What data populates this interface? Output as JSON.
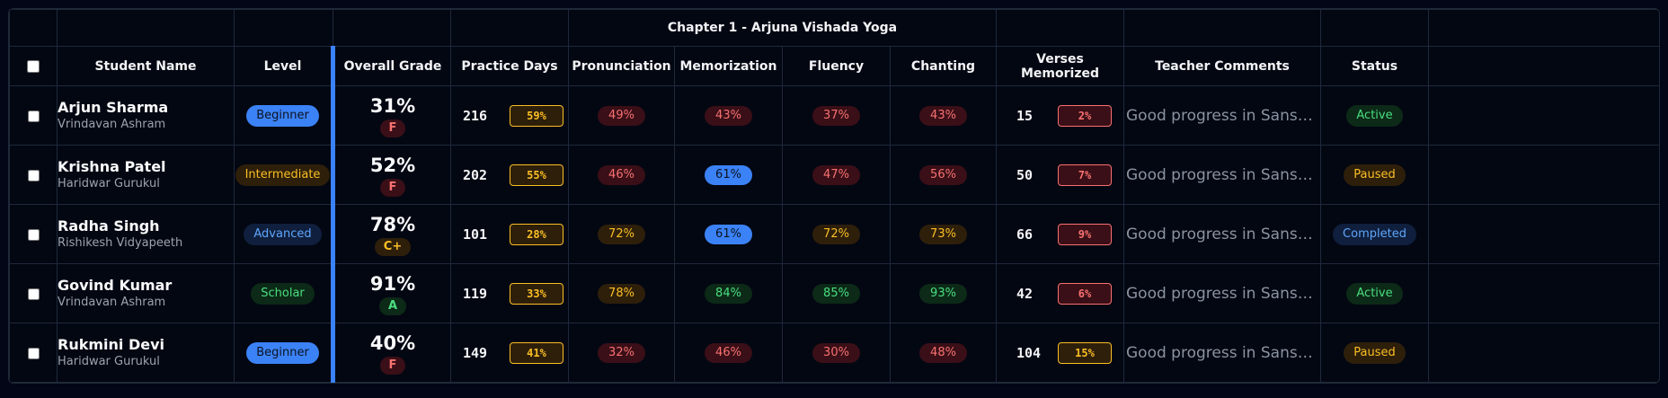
{
  "table": {
    "group_header": "Chapter 1 - Arjuna Vishada Yoga",
    "headers": {
      "student_name": "Student Name",
      "level": "Level",
      "overall_grade": "Overall Grade",
      "practice_days": "Practice Days",
      "pronunciation": "Pronunciation",
      "memorization": "Memorization",
      "fluency": "Fluency",
      "chanting": "Chanting",
      "verses_memorized": "Verses Memorized",
      "teacher_comments": "Teacher Comments",
      "status": "Status"
    },
    "rows": [
      {
        "name": "Arjun Sharma",
        "school": "Vrindavan Ashram",
        "level": "Beginner",
        "grade_pct": "31%",
        "grade_letter": "F",
        "practice_days": "216",
        "practice_pct": "59%",
        "pronunciation": "49%",
        "memorization": "43%",
        "fluency": "37%",
        "chanting": "43%",
        "verses": "15",
        "verses_pct": "2%",
        "comment": "Good progress in Sanskrit s...",
        "status": "Active"
      },
      {
        "name": "Krishna Patel",
        "school": "Haridwar Gurukul",
        "level": "Intermediate",
        "grade_pct": "52%",
        "grade_letter": "F",
        "practice_days": "202",
        "practice_pct": "55%",
        "pronunciation": "46%",
        "memorization": "61%",
        "fluency": "47%",
        "chanting": "56%",
        "verses": "50",
        "verses_pct": "7%",
        "comment": "Good progress in Sanskrit s...",
        "status": "Paused"
      },
      {
        "name": "Radha Singh",
        "school": "Rishikesh Vidyapeeth",
        "level": "Advanced",
        "grade_pct": "78%",
        "grade_letter": "C+",
        "practice_days": "101",
        "practice_pct": "28%",
        "pronunciation": "72%",
        "memorization": "61%",
        "fluency": "72%",
        "chanting": "73%",
        "verses": "66",
        "verses_pct": "9%",
        "comment": "Good progress in Sanskrit s...",
        "status": "Completed"
      },
      {
        "name": "Govind Kumar",
        "school": "Vrindavan Ashram",
        "level": "Scholar",
        "grade_pct": "91%",
        "grade_letter": "A",
        "practice_days": "119",
        "practice_pct": "33%",
        "pronunciation": "78%",
        "memorization": "84%",
        "fluency": "85%",
        "chanting": "93%",
        "verses": "42",
        "verses_pct": "6%",
        "comment": "Good progress in Sanskrit s...",
        "status": "Active"
      },
      {
        "name": "Rukmini Devi",
        "school": "Haridwar Gurukul",
        "level": "Beginner",
        "grade_pct": "40%",
        "grade_letter": "F",
        "practice_days": "149",
        "practice_pct": "41%",
        "pronunciation": "32%",
        "memorization": "46%",
        "fluency": "30%",
        "chanting": "48%",
        "verses": "104",
        "verses_pct": "15%",
        "comment": "Good progress in Sanskrit s...",
        "status": "Paused"
      }
    ]
  },
  "colors": {
    "background": "#030712",
    "border": "#1e293b",
    "accent": "#3b82f6",
    "red_text": "#f87171",
    "red_bg": "#3a0f17",
    "amber_text": "#fbbf24",
    "amber_bg": "#2e1f0b",
    "green_text": "#4ade80",
    "green_bg": "#0c2a17",
    "blue_fill": "#3b82f6",
    "blue_dark_bg": "#0f1f3d",
    "blue_text": "#60a5fa"
  }
}
